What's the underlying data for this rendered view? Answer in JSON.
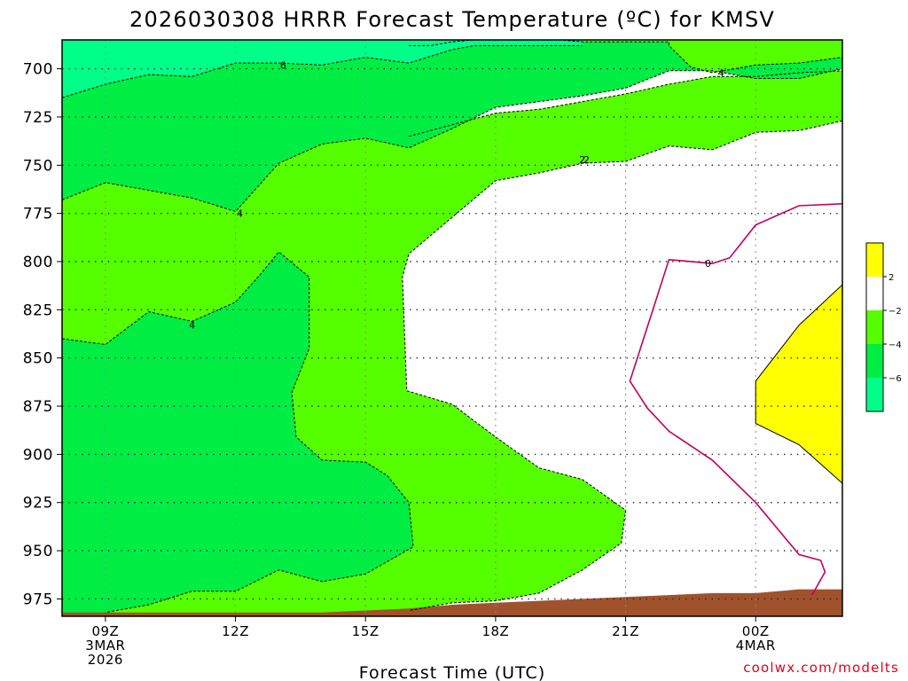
{
  "chart_data": {
    "type": "contour",
    "title": "2026030308 HRRR Forecast Temperature (ºC) for KMSV",
    "xlabel": "Forecast Time (UTC)",
    "ylabel": "",
    "credit": "coolwx.com/modelts",
    "y_ticks": [
      {
        "value": 700,
        "label": "700"
      },
      {
        "value": 725,
        "label": "725"
      },
      {
        "value": 750,
        "label": "750"
      },
      {
        "value": 775,
        "label": "775"
      },
      {
        "value": 800,
        "label": "800"
      },
      {
        "value": 825,
        "label": "825"
      },
      {
        "value": 850,
        "label": "850"
      },
      {
        "value": 875,
        "label": "875"
      },
      {
        "value": 900,
        "label": "900"
      },
      {
        "value": 925,
        "label": "925"
      },
      {
        "value": 950,
        "label": "950"
      },
      {
        "value": 975,
        "label": "975"
      }
    ],
    "ylim": [
      984,
      685
    ],
    "xlim": [
      8,
      26
    ],
    "x_ticks": [
      {
        "hour": 9,
        "line1": "09Z",
        "line2": "3MAR",
        "line3": "2026"
      },
      {
        "hour": 12,
        "line1": "12Z",
        "line2": "",
        "line3": ""
      },
      {
        "hour": 15,
        "line1": "15Z",
        "line2": "",
        "line3": ""
      },
      {
        "hour": 18,
        "line1": "18Z",
        "line2": "",
        "line3": ""
      },
      {
        "hour": 21,
        "line1": "21Z",
        "line2": "",
        "line3": ""
      },
      {
        "hour": 24,
        "line1": "00Z",
        "line2": "4MAR",
        "line3": ""
      }
    ],
    "grid": true,
    "colorbar": {
      "position": "right",
      "bins": [
        {
          "color": "#ffff00",
          "label": "2"
        },
        {
          "color": "#ffffff",
          "label": "−2"
        },
        {
          "color": "#55ff00",
          "label": "−4"
        },
        {
          "color": "#00ee44",
          "label": "−6"
        },
        {
          "color": "#00ff88",
          "label": ""
        }
      ]
    },
    "fill_colors": {
      "below_minus6": "#00ff88",
      "minus6_to_minus4": "#00ee44",
      "minus4_to_minus2": "#55ff00",
      "minus2_to_0": "#ffffff",
      "above_2": "#ffff00",
      "ground": "#a0522d"
    },
    "contours": [
      {
        "level": "-6",
        "label": "6",
        "label_at": [
          13.1,
          698
        ],
        "points": [
          [
            8,
            715
          ],
          [
            9,
            708
          ],
          [
            10,
            703
          ],
          [
            11,
            704
          ],
          [
            12,
            697
          ],
          [
            13,
            697
          ],
          [
            14,
            698
          ],
          [
            15,
            694
          ],
          [
            16,
            697
          ],
          [
            17,
            690
          ],
          [
            17.5,
            688
          ],
          [
            18,
            688
          ],
          [
            20,
            688
          ]
        ]
      },
      {
        "level": "-4",
        "label": "4",
        "label_at": [
          23.2,
          702
        ],
        "points": [
          [
            16,
            688
          ],
          [
            16.5,
            688
          ],
          [
            17,
            686
          ],
          [
            18,
            684
          ],
          [
            19,
            684
          ],
          [
            20,
            686
          ],
          [
            22,
            686
          ],
          [
            22,
            688
          ],
          [
            22.5,
            699
          ],
          [
            23,
            702
          ],
          [
            24,
            698
          ],
          [
            25,
            697
          ],
          [
            26,
            694
          ]
        ]
      },
      {
        "level": "-4",
        "label": "4",
        "label_at": [
          12.1,
          775
        ],
        "points": [
          [
            8,
            768
          ],
          [
            9,
            759
          ],
          [
            10,
            763
          ],
          [
            11,
            767
          ],
          [
            12,
            774
          ],
          [
            13,
            749
          ],
          [
            14,
            739
          ],
          [
            15,
            736
          ],
          [
            16,
            741
          ],
          [
            17,
            731
          ],
          [
            18,
            720
          ],
          [
            19,
            717
          ],
          [
            20,
            714
          ],
          [
            21,
            710
          ],
          [
            22,
            701
          ],
          [
            23,
            701
          ],
          [
            24,
            705
          ],
          [
            25,
            705
          ],
          [
            26,
            700
          ]
        ]
      },
      {
        "level": "-2",
        "label": "2",
        "label_at": [
          20.1,
          747
        ],
        "points": [
          [
            16,
            735
          ],
          [
            17,
            729
          ],
          [
            18,
            723
          ],
          [
            19,
            721
          ],
          [
            20,
            717
          ],
          [
            21,
            713
          ],
          [
            22,
            708
          ],
          [
            23,
            704
          ],
          [
            24,
            704
          ],
          [
            25,
            702
          ],
          [
            26,
            701
          ]
        ]
      },
      {
        "level": "-2",
        "label": "2",
        "label_at": [
          20.0,
          747
        ],
        "points": [
          [
            26,
            727
          ],
          [
            25,
            732
          ],
          [
            24,
            733
          ],
          [
            23,
            742
          ],
          [
            22,
            740
          ],
          [
            21,
            748
          ],
          [
            20,
            749
          ],
          [
            19,
            754
          ],
          [
            18,
            758
          ],
          [
            17,
            777
          ],
          [
            16,
            796
          ],
          [
            15.85,
            808
          ],
          [
            15.95,
            867
          ],
          [
            17,
            874
          ],
          [
            18,
            891
          ],
          [
            19,
            907
          ],
          [
            20,
            913
          ],
          [
            21,
            929
          ],
          [
            20.9,
            946
          ],
          [
            20,
            960
          ],
          [
            19,
            972
          ],
          [
            18,
            976
          ],
          [
            17,
            977
          ],
          [
            16,
            981
          ]
        ]
      },
      {
        "level": "-4",
        "label": "4",
        "label_at": [
          11.0,
          833
        ],
        "points": [
          [
            8,
            840
          ],
          [
            9,
            843
          ],
          [
            10,
            826
          ],
          [
            11,
            831
          ],
          [
            12,
            821
          ],
          [
            12.6,
            806
          ],
          [
            13,
            795
          ],
          [
            13.7,
            808
          ],
          [
            13.7,
            845
          ],
          [
            13.3,
            868
          ],
          [
            13.4,
            891
          ],
          [
            14,
            903
          ],
          [
            15,
            904
          ],
          [
            15.5,
            911
          ],
          [
            16,
            925
          ],
          [
            16.1,
            948
          ],
          [
            15,
            962
          ],
          [
            14,
            966
          ],
          [
            13,
            960
          ],
          [
            12,
            971
          ],
          [
            11,
            971
          ],
          [
            10,
            978
          ],
          [
            9,
            982
          ]
        ]
      },
      {
        "level": "0",
        "label": "0",
        "label_at": [
          22.9,
          801
        ],
        "points": [
          [
            26,
            770
          ],
          [
            25,
            771
          ],
          [
            24,
            781
          ],
          [
            23.4,
            798
          ],
          [
            23,
            801
          ],
          [
            22,
            799
          ],
          [
            21.6,
            827
          ],
          [
            21.1,
            862
          ],
          [
            21.5,
            876
          ],
          [
            22,
            888
          ],
          [
            23,
            903
          ],
          [
            24,
            925
          ],
          [
            25,
            952
          ],
          [
            25.5,
            955
          ],
          [
            25.6,
            961
          ],
          [
            25.3,
            973
          ]
        ]
      },
      {
        "level": "2",
        "label": "",
        "label_at": null,
        "points": [
          [
            26,
            812
          ],
          [
            25,
            833
          ],
          [
            24,
            862
          ],
          [
            24,
            884
          ],
          [
            25,
            895
          ],
          [
            26,
            915
          ]
        ]
      }
    ],
    "ground_boundary": [
      [
        8,
        982
      ],
      [
        9,
        982
      ],
      [
        10,
        982
      ],
      [
        11,
        982
      ],
      [
        12,
        982
      ],
      [
        13,
        982
      ],
      [
        14,
        982
      ],
      [
        15,
        981
      ],
      [
        16,
        980
      ],
      [
        17,
        978
      ],
      [
        18,
        977
      ],
      [
        19,
        976
      ],
      [
        20,
        975
      ],
      [
        21,
        974
      ],
      [
        22,
        973
      ],
      [
        23,
        972
      ],
      [
        24,
        972
      ],
      [
        25,
        970
      ],
      [
        26,
        970
      ]
    ]
  }
}
